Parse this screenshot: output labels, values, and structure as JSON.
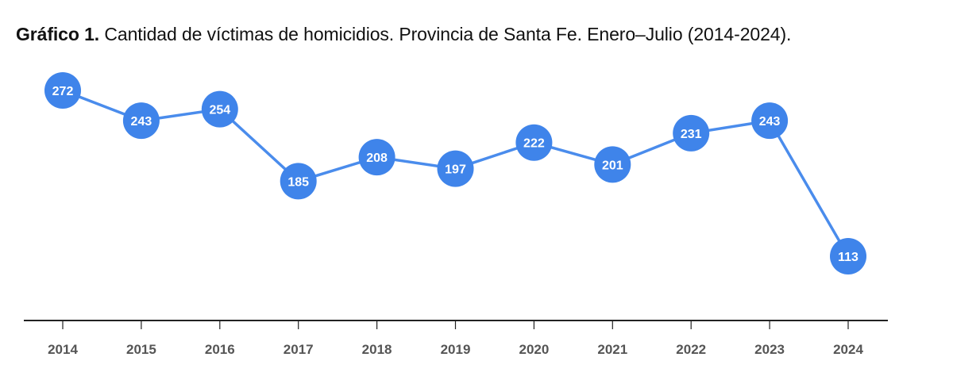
{
  "title": {
    "prefix": "Gráfico 1.",
    "text": " Cantidad de víctimas de homicidios. Provincia de Santa Fe. Enero–Julio (2014-2024)."
  },
  "colors": {
    "line": "#4a8cec",
    "marker": "#3f84ea",
    "marker_text": "#ffffff",
    "axis": "#222222",
    "tick_label": "#555555"
  },
  "chart_data": {
    "type": "line",
    "title": "Gráfico 1. Cantidad de víctimas de homicidios. Provincia de Santa Fe. Enero–Julio (2014-2024).",
    "xlabel": "",
    "ylabel": "",
    "categories": [
      "2014",
      "2015",
      "2016",
      "2017",
      "2018",
      "2019",
      "2020",
      "2021",
      "2022",
      "2023",
      "2024"
    ],
    "values": [
      272,
      243,
      254,
      185,
      208,
      197,
      222,
      201,
      231,
      243,
      113
    ],
    "data_labels": true,
    "grid": false,
    "legend": "none"
  }
}
